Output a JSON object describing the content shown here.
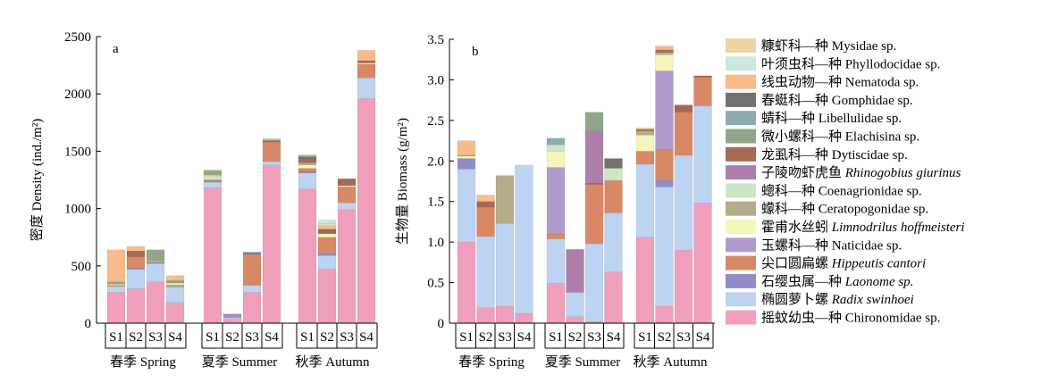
{
  "legend": [
    {
      "key": "mysidae",
      "label_cn": "糠虾科—种",
      "label_en": "Mysidae sp.",
      "italic": false,
      "color": "#efd3a4"
    },
    {
      "key": "phyllodocidae",
      "label_cn": "叶须虫科—种",
      "label_en": "Phyllodocidae sp.",
      "italic": false,
      "color": "#cae8de"
    },
    {
      "key": "nematoda",
      "label_cn": "线虫动物—种",
      "label_en": "Nematoda sp.",
      "italic": false,
      "color": "#f7bb8c"
    },
    {
      "key": "gomphidae",
      "label_cn": "春蜓科—种",
      "label_en": "Gomphidae sp.",
      "italic": false,
      "color": "#75716f"
    },
    {
      "key": "libellulidae",
      "label_cn": "蜻科—种",
      "label_en": "Libellulidae sp.",
      "italic": false,
      "color": "#8da9b2"
    },
    {
      "key": "elachisina",
      "label_cn": "微小螺科—种",
      "label_en": "Elachisina sp.",
      "italic": false,
      "color": "#8fa68a"
    },
    {
      "key": "dytiscidae",
      "label_cn": "龙虱科—种",
      "label_en": "Dytiscidae sp.",
      "italic": false,
      "color": "#a86853"
    },
    {
      "key": "rhinogobius",
      "label_cn": "子陵吻虾虎鱼",
      "label_en": "Rhinogobius giurinus",
      "italic": true,
      "color": "#ad7faa"
    },
    {
      "key": "coenagrionidae",
      "label_cn": "蟌科—种",
      "label_en": "Coenagrionidae sp.",
      "italic": false,
      "color": "#cde6c6"
    },
    {
      "key": "ceratopogonidae",
      "label_cn": "蠓科—种",
      "label_en": "Ceratopogonidae sp.",
      "italic": false,
      "color": "#b3ad8a"
    },
    {
      "key": "limnodrilus",
      "label_cn": "霍甫水丝蚓",
      "label_en": "Limnodrilus hoffmeisteri",
      "italic": true,
      "color": "#f4f5b9"
    },
    {
      "key": "naticidae",
      "label_cn": "玉螺科—种",
      "label_en": "Naticidae sp.",
      "italic": false,
      "color": "#b09ccc"
    },
    {
      "key": "hippeutis",
      "label_cn": "尖口圆扁螺",
      "label_en": "Hippeutis cantori",
      "italic": true,
      "color": "#d98865"
    },
    {
      "key": "laonome",
      "label_cn": "石缨虫属—种",
      "label_en": "Laonome sp.",
      "italic": true,
      "color": "#8e8cc9"
    },
    {
      "key": "radix",
      "label_cn": "椭圆萝卜螺",
      "label_en": "Radix swinhoei",
      "italic": true,
      "color": "#bcd3f1"
    },
    {
      "key": "chironomidae",
      "label_cn": "摇蚊幼虫—种",
      "label_en": "Chironomidae sp.",
      "italic": false,
      "color": "#ef9fbc"
    }
  ],
  "chart_data": [
    {
      "type": "bar",
      "stacked": true,
      "panel_letter": "a",
      "ylabel": "密度 Density (ind./m²)",
      "ylim": [
        0,
        2500
      ],
      "yticks": [
        0,
        500,
        1000,
        1500,
        2000,
        2500
      ],
      "groups": [
        {
          "label": "春季 Spring",
          "sites": [
            "S1",
            "S2",
            "S3",
            "S4"
          ]
        },
        {
          "label": "夏季 Summer",
          "sites": [
            "S1",
            "S2",
            "S3",
            "S4"
          ]
        },
        {
          "label": "秋季 Autumn",
          "sites": [
            "S1",
            "S2",
            "S3",
            "S4"
          ]
        }
      ],
      "bars": [
        {
          "group": 0,
          "site": "S1",
          "segments": [
            [
              "chironomidae",
              270
            ],
            [
              "radix",
              50
            ],
            [
              "hippeutis",
              10
            ],
            [
              "limnodrilus",
              10
            ],
            [
              "elachisina",
              20
            ],
            [
              "nematoda",
              280
            ]
          ]
        },
        {
          "group": 0,
          "site": "S2",
          "segments": [
            [
              "chironomidae",
              300
            ],
            [
              "radix",
              170
            ],
            [
              "laonome",
              10
            ],
            [
              "hippeutis",
              100
            ],
            [
              "dytiscidae",
              50
            ],
            [
              "nematoda",
              40
            ]
          ]
        },
        {
          "group": 0,
          "site": "S3",
          "segments": [
            [
              "chironomidae",
              360
            ],
            [
              "radix",
              160
            ],
            [
              "laonome",
              10
            ],
            [
              "ceratopogonidae",
              20
            ],
            [
              "elachisina",
              90
            ]
          ]
        },
        {
          "group": 0,
          "site": "S4",
          "segments": [
            [
              "chironomidae",
              180
            ],
            [
              "radix",
              135
            ],
            [
              "ceratopogonidae",
              20
            ],
            [
              "limnodrilus",
              15
            ],
            [
              "elachisina",
              20
            ],
            [
              "nematoda",
              45
            ]
          ]
        },
        {
          "group": 1,
          "site": "S1",
          "segments": [
            [
              "chironomidae",
              1180
            ],
            [
              "radix",
              50
            ],
            [
              "laonome",
              10
            ],
            [
              "hippeutis",
              10
            ],
            [
              "coenagrionidae",
              30
            ],
            [
              "limnodrilus",
              10
            ],
            [
              "elachisina",
              40
            ],
            [
              "mysidae",
              10
            ]
          ]
        },
        {
          "group": 1,
          "site": "S2",
          "segments": [
            [
              "chironomidae",
              40
            ],
            [
              "radix",
              10
            ],
            [
              "laonome",
              10
            ],
            [
              "naticidae",
              10
            ],
            [
              "rhinogobius",
              10
            ]
          ]
        },
        {
          "group": 1,
          "site": "S3",
          "segments": [
            [
              "chironomidae",
              270
            ],
            [
              "radix",
              60
            ],
            [
              "hippeutis",
              260
            ],
            [
              "naticidae",
              10
            ],
            [
              "dytiscidae",
              10
            ],
            [
              "laonome",
              10
            ]
          ]
        },
        {
          "group": 1,
          "site": "S4",
          "segments": [
            [
              "chironomidae",
              1380
            ],
            [
              "radix",
              30
            ],
            [
              "hippeutis",
              170
            ],
            [
              "dytiscidae",
              10
            ],
            [
              "elachisina",
              10
            ],
            [
              "mysidae",
              10
            ]
          ]
        },
        {
          "group": 2,
          "site": "S1",
          "segments": [
            [
              "chironomidae",
              1170
            ],
            [
              "radix",
              140
            ],
            [
              "laonome",
              10
            ],
            [
              "hippeutis",
              30
            ],
            [
              "limnodrilus",
              30
            ],
            [
              "ceratopogonidae",
              20
            ],
            [
              "dytiscidae",
              30
            ],
            [
              "gomphidae",
              20
            ],
            [
              "elachisina",
              10
            ],
            [
              "mysidae",
              10
            ]
          ]
        },
        {
          "group": 2,
          "site": "S2",
          "segments": [
            [
              "chironomidae",
              470
            ],
            [
              "radix",
              120
            ],
            [
              "laonome",
              20
            ],
            [
              "hippeutis",
              140
            ],
            [
              "limnodrilus",
              30
            ],
            [
              "dytiscidae",
              20
            ],
            [
              "gomphidae",
              20
            ],
            [
              "nematoda",
              30
            ],
            [
              "coenagrionidae",
              20
            ],
            [
              "phyllodocidae",
              30
            ]
          ]
        },
        {
          "group": 2,
          "site": "S3",
          "segments": [
            [
              "chironomidae",
              990
            ],
            [
              "radix",
              60
            ],
            [
              "hippeutis",
              140
            ],
            [
              "limnodrilus",
              10
            ],
            [
              "dytiscidae",
              60
            ]
          ]
        },
        {
          "group": 2,
          "site": "S4",
          "segments": [
            [
              "chironomidae",
              1960
            ],
            [
              "radix",
              180
            ],
            [
              "hippeutis",
              120
            ],
            [
              "limnodrilus",
              10
            ],
            [
              "dytiscidae",
              20
            ],
            [
              "nematoda",
              90
            ]
          ]
        }
      ]
    },
    {
      "type": "bar",
      "stacked": true,
      "panel_letter": "b",
      "ylabel": "生物量 Biomass (g/m²)",
      "ylim": [
        0,
        3.5
      ],
      "yticks": [
        0,
        0.5,
        1.0,
        1.5,
        2.0,
        2.5,
        3.0,
        3.5
      ],
      "groups": [
        {
          "label": "春季 Spring",
          "sites": [
            "S1",
            "S2",
            "S3",
            "S4"
          ]
        },
        {
          "label": "夏季 Summer",
          "sites": [
            "S1",
            "S2",
            "S3",
            "S4"
          ]
        },
        {
          "label": "秋季 Autumn",
          "sites": [
            "S1",
            "S2",
            "S3",
            "S4"
          ]
        }
      ],
      "bars": [
        {
          "group": 0,
          "site": "S1",
          "segments": [
            [
              "chironomidae",
              1.0
            ],
            [
              "radix",
              0.9
            ],
            [
              "laonome",
              0.13
            ],
            [
              "limnodrilus",
              0.03
            ],
            [
              "elachisina",
              0.01
            ],
            [
              "nematoda",
              0.18
            ]
          ]
        },
        {
          "group": 0,
          "site": "S2",
          "segments": [
            [
              "chironomidae",
              0.19
            ],
            [
              "radix",
              0.88
            ],
            [
              "hippeutis",
              0.36
            ],
            [
              "dytiscidae",
              0.07
            ],
            [
              "nematoda",
              0.08
            ]
          ]
        },
        {
          "group": 0,
          "site": "S3",
          "segments": [
            [
              "chironomidae",
              0.21
            ],
            [
              "radix",
              1.02
            ],
            [
              "ceratopogonidae",
              0.59
            ]
          ]
        },
        {
          "group": 0,
          "site": "S4",
          "segments": [
            [
              "chironomidae",
              0.12
            ],
            [
              "radix",
              1.83
            ]
          ]
        },
        {
          "group": 1,
          "site": "S1",
          "segments": [
            [
              "chironomidae",
              0.49
            ],
            [
              "radix",
              0.55
            ],
            [
              "hippeutis",
              0.06
            ],
            [
              "naticidae",
              0.82
            ],
            [
              "limnodrilus",
              0.2
            ],
            [
              "coenagrionidae",
              0.08
            ],
            [
              "libellulidae",
              0.08
            ]
          ]
        },
        {
          "group": 1,
          "site": "S2",
          "segments": [
            [
              "chironomidae",
              0.08
            ],
            [
              "radix",
              0.3
            ],
            [
              "rhinogobius",
              0.53
            ]
          ]
        },
        {
          "group": 1,
          "site": "S3",
          "segments": [
            [
              "chironomidae",
              0.02
            ],
            [
              "radix",
              0.96
            ],
            [
              "hippeutis",
              0.73
            ],
            [
              "dytiscidae",
              0.02
            ],
            [
              "rhinogobius",
              0.64
            ],
            [
              "elachisina",
              0.23
            ]
          ]
        },
        {
          "group": 1,
          "site": "S4",
          "segments": [
            [
              "chironomidae",
              0.63
            ],
            [
              "radix",
              0.73
            ],
            [
              "hippeutis",
              0.4
            ],
            [
              "coenagrionidae",
              0.15
            ],
            [
              "gomphidae",
              0.12
            ]
          ]
        },
        {
          "group": 2,
          "site": "S1",
          "segments": [
            [
              "chironomidae",
              1.06
            ],
            [
              "radix",
              0.9
            ],
            [
              "hippeutis",
              0.16
            ],
            [
              "limnodrilus",
              0.2
            ],
            [
              "ceratopogonidae",
              0.05
            ],
            [
              "dytiscidae",
              0.02
            ],
            [
              "mysidae",
              0.02
            ]
          ]
        },
        {
          "group": 2,
          "site": "S2",
          "segments": [
            [
              "chironomidae",
              0.21
            ],
            [
              "radix",
              1.47
            ],
            [
              "laonome",
              0.08
            ],
            [
              "hippeutis",
              0.38
            ],
            [
              "naticidae",
              0.97
            ],
            [
              "limnodrilus",
              0.2
            ],
            [
              "ceratopogonidae",
              0.03
            ],
            [
              "dytiscidae",
              0.03
            ],
            [
              "nematoda",
              0.03
            ],
            [
              "mysidae",
              0.02
            ]
          ]
        },
        {
          "group": 2,
          "site": "S3",
          "segments": [
            [
              "chironomidae",
              0.9
            ],
            [
              "radix",
              1.17
            ],
            [
              "hippeutis",
              0.53
            ],
            [
              "dytiscidae",
              0.09
            ]
          ]
        },
        {
          "group": 2,
          "site": "S4",
          "segments": [
            [
              "chironomidae",
              1.48
            ],
            [
              "radix",
              1.2
            ],
            [
              "hippeutis",
              0.35
            ],
            [
              "dytiscidae",
              0.02
            ]
          ]
        }
      ]
    }
  ]
}
